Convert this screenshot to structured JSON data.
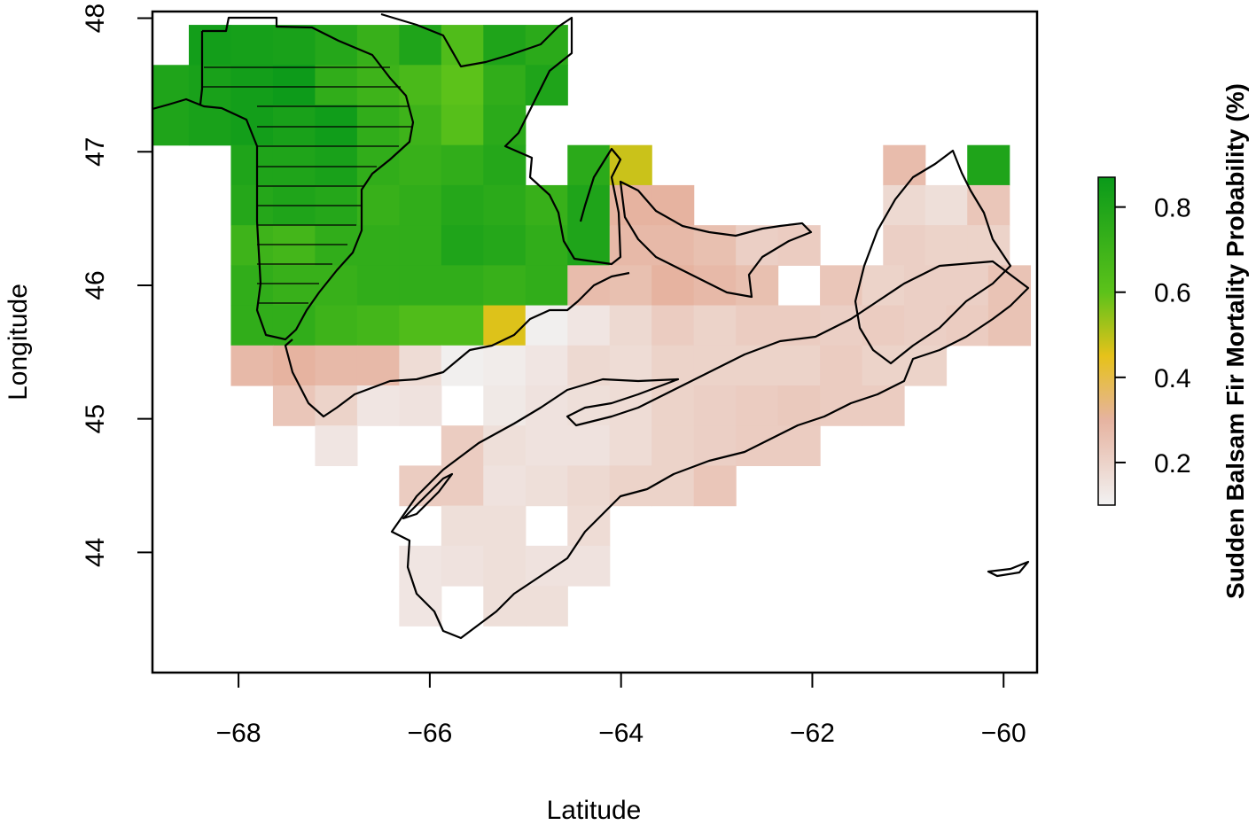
{
  "chart_data": {
    "type": "heatmap",
    "title": "",
    "xlabel": "Latitude",
    "ylabel": "Longitude",
    "xlim": [
      -68.9,
      -59.65
    ],
    "ylim": [
      43.1,
      48.05
    ],
    "x_ticks": [
      -68,
      -66,
      -64,
      -62,
      -60
    ],
    "y_ticks": [
      44,
      45,
      46,
      47,
      48
    ],
    "grid": false,
    "cell_width_deg": 0.44,
    "cell_height_deg": 0.3,
    "legend": {
      "title": "Sudden Balsam Fir Mortality Probability (%)",
      "placement": "right",
      "min": 0.1,
      "max": 0.87,
      "ticks": [
        0.2,
        0.4,
        0.6,
        0.8
      ],
      "colors": [
        "#f2f2f2",
        "#e6b3a0",
        "#e6c21a",
        "#5cc21a",
        "#0a9a1a"
      ],
      "color_stops": [
        0.1,
        0.3,
        0.45,
        0.6,
        0.87
      ]
    },
    "hatched_region": "Maine state area (line-hatched)",
    "cells": [
      {
        "x": -68.3,
        "y": 47.8,
        "v": 0.84
      },
      {
        "x": -67.86,
        "y": 47.8,
        "v": 0.83
      },
      {
        "x": -67.42,
        "y": 47.8,
        "v": 0.82
      },
      {
        "x": -66.98,
        "y": 47.8,
        "v": 0.78
      },
      {
        "x": -66.54,
        "y": 47.8,
        "v": 0.72
      },
      {
        "x": -66.1,
        "y": 47.8,
        "v": 0.8
      },
      {
        "x": -65.66,
        "y": 47.8,
        "v": 0.64
      },
      {
        "x": -65.22,
        "y": 47.8,
        "v": 0.8
      },
      {
        "x": -64.78,
        "y": 47.8,
        "v": 0.76
      },
      {
        "x": -68.74,
        "y": 47.5,
        "v": 0.8
      },
      {
        "x": -68.3,
        "y": 47.5,
        "v": 0.82
      },
      {
        "x": -67.86,
        "y": 47.5,
        "v": 0.84
      },
      {
        "x": -67.42,
        "y": 47.5,
        "v": 0.86
      },
      {
        "x": -66.98,
        "y": 47.5,
        "v": 0.74
      },
      {
        "x": -66.54,
        "y": 47.5,
        "v": 0.7
      },
      {
        "x": -66.1,
        "y": 47.5,
        "v": 0.66
      },
      {
        "x": -65.66,
        "y": 47.5,
        "v": 0.6
      },
      {
        "x": -65.22,
        "y": 47.5,
        "v": 0.74
      },
      {
        "x": -64.78,
        "y": 47.5,
        "v": 0.8
      },
      {
        "x": -68.74,
        "y": 47.2,
        "v": 0.8
      },
      {
        "x": -68.3,
        "y": 47.2,
        "v": 0.82
      },
      {
        "x": -67.86,
        "y": 47.2,
        "v": 0.84
      },
      {
        "x": -67.42,
        "y": 47.2,
        "v": 0.82
      },
      {
        "x": -66.98,
        "y": 47.2,
        "v": 0.85
      },
      {
        "x": -66.54,
        "y": 47.2,
        "v": 0.74
      },
      {
        "x": -66.1,
        "y": 47.2,
        "v": 0.7
      },
      {
        "x": -65.66,
        "y": 47.2,
        "v": 0.62
      },
      {
        "x": -65.22,
        "y": 47.2,
        "v": 0.76
      },
      {
        "x": -64.34,
        "y": 46.9,
        "v": 0.76
      },
      {
        "x": -63.9,
        "y": 46.9,
        "v": 0.48
      },
      {
        "x": -67.86,
        "y": 46.9,
        "v": 0.8
      },
      {
        "x": -67.42,
        "y": 46.9,
        "v": 0.8
      },
      {
        "x": -66.98,
        "y": 46.9,
        "v": 0.82
      },
      {
        "x": -66.54,
        "y": 46.9,
        "v": 0.74
      },
      {
        "x": -66.1,
        "y": 46.9,
        "v": 0.72
      },
      {
        "x": -65.66,
        "y": 46.9,
        "v": 0.74
      },
      {
        "x": -65.22,
        "y": 46.9,
        "v": 0.78
      },
      {
        "x": -61.04,
        "y": 46.9,
        "v": 0.27
      },
      {
        "x": -60.16,
        "y": 46.9,
        "v": 0.8
      },
      {
        "x": -67.86,
        "y": 46.6,
        "v": 0.78
      },
      {
        "x": -67.42,
        "y": 46.6,
        "v": 0.8
      },
      {
        "x": -66.98,
        "y": 46.6,
        "v": 0.78
      },
      {
        "x": -66.54,
        "y": 46.6,
        "v": 0.72
      },
      {
        "x": -66.1,
        "y": 46.6,
        "v": 0.74
      },
      {
        "x": -65.66,
        "y": 46.6,
        "v": 0.78
      },
      {
        "x": -65.22,
        "y": 46.6,
        "v": 0.76
      },
      {
        "x": -64.78,
        "y": 46.6,
        "v": 0.72
      },
      {
        "x": -64.34,
        "y": 46.6,
        "v": 0.8
      },
      {
        "x": -63.9,
        "y": 46.6,
        "v": 0.3
      },
      {
        "x": -63.46,
        "y": 46.6,
        "v": 0.3
      },
      {
        "x": -61.04,
        "y": 46.6,
        "v": 0.18
      },
      {
        "x": -60.6,
        "y": 46.6,
        "v": 0.16
      },
      {
        "x": -60.16,
        "y": 46.6,
        "v": 0.24
      },
      {
        "x": -67.86,
        "y": 46.3,
        "v": 0.7
      },
      {
        "x": -67.42,
        "y": 46.3,
        "v": 0.68
      },
      {
        "x": -66.98,
        "y": 46.3,
        "v": 0.74
      },
      {
        "x": -66.54,
        "y": 46.3,
        "v": 0.74
      },
      {
        "x": -66.1,
        "y": 46.3,
        "v": 0.74
      },
      {
        "x": -65.66,
        "y": 46.3,
        "v": 0.8
      },
      {
        "x": -65.22,
        "y": 46.3,
        "v": 0.78
      },
      {
        "x": -64.78,
        "y": 46.3,
        "v": 0.74
      },
      {
        "x": -64.34,
        "y": 46.3,
        "v": 0.8
      },
      {
        "x": -63.9,
        "y": 46.3,
        "v": 0.28
      },
      {
        "x": -63.46,
        "y": 46.3,
        "v": 0.28
      },
      {
        "x": -63.02,
        "y": 46.3,
        "v": 0.26
      },
      {
        "x": -62.58,
        "y": 46.3,
        "v": 0.21
      },
      {
        "x": -62.14,
        "y": 46.3,
        "v": 0.22
      },
      {
        "x": -61.04,
        "y": 46.3,
        "v": 0.21
      },
      {
        "x": -60.6,
        "y": 46.3,
        "v": 0.2
      },
      {
        "x": -60.16,
        "y": 46.3,
        "v": 0.2
      },
      {
        "x": -67.86,
        "y": 46.0,
        "v": 0.74
      },
      {
        "x": -67.42,
        "y": 46.0,
        "v": 0.72
      },
      {
        "x": -66.98,
        "y": 46.0,
        "v": 0.72
      },
      {
        "x": -66.54,
        "y": 46.0,
        "v": 0.74
      },
      {
        "x": -66.1,
        "y": 46.0,
        "v": 0.74
      },
      {
        "x": -65.66,
        "y": 46.0,
        "v": 0.74
      },
      {
        "x": -65.22,
        "y": 46.0,
        "v": 0.72
      },
      {
        "x": -64.78,
        "y": 46.0,
        "v": 0.74
      },
      {
        "x": -64.34,
        "y": 46.0,
        "v": 0.27
      },
      {
        "x": -63.9,
        "y": 46.0,
        "v": 0.26
      },
      {
        "x": -63.46,
        "y": 46.0,
        "v": 0.3
      },
      {
        "x": -63.02,
        "y": 46.0,
        "v": 0.28
      },
      {
        "x": -62.58,
        "y": 46.0,
        "v": 0.26
      },
      {
        "x": -61.7,
        "y": 46.0,
        "v": 0.24
      },
      {
        "x": -61.26,
        "y": 46.0,
        "v": 0.2
      },
      {
        "x": -60.82,
        "y": 46.0,
        "v": 0.21
      },
      {
        "x": -60.38,
        "y": 46.0,
        "v": 0.21
      },
      {
        "x": -59.94,
        "y": 46.0,
        "v": 0.25
      },
      {
        "x": -67.86,
        "y": 45.7,
        "v": 0.74
      },
      {
        "x": -67.42,
        "y": 45.7,
        "v": 0.74
      },
      {
        "x": -66.98,
        "y": 45.7,
        "v": 0.7
      },
      {
        "x": -66.54,
        "y": 45.7,
        "v": 0.68
      },
      {
        "x": -66.1,
        "y": 45.7,
        "v": 0.64
      },
      {
        "x": -65.66,
        "y": 45.7,
        "v": 0.64
      },
      {
        "x": -65.22,
        "y": 45.7,
        "v": 0.46
      },
      {
        "x": -64.78,
        "y": 45.7,
        "v": 0.11
      },
      {
        "x": -64.34,
        "y": 45.7,
        "v": 0.14
      },
      {
        "x": -63.9,
        "y": 45.7,
        "v": 0.18
      },
      {
        "x": -63.46,
        "y": 45.7,
        "v": 0.22
      },
      {
        "x": -63.02,
        "y": 45.7,
        "v": 0.2
      },
      {
        "x": -62.58,
        "y": 45.7,
        "v": 0.22
      },
      {
        "x": -62.14,
        "y": 45.7,
        "v": 0.22
      },
      {
        "x": -61.7,
        "y": 45.7,
        "v": 0.21
      },
      {
        "x": -61.26,
        "y": 45.7,
        "v": 0.22
      },
      {
        "x": -60.82,
        "y": 45.7,
        "v": 0.21
      },
      {
        "x": -60.38,
        "y": 45.7,
        "v": 0.22
      },
      {
        "x": -59.94,
        "y": 45.7,
        "v": 0.25
      },
      {
        "x": -67.86,
        "y": 45.4,
        "v": 0.28
      },
      {
        "x": -67.42,
        "y": 45.4,
        "v": 0.3
      },
      {
        "x": -66.98,
        "y": 45.4,
        "v": 0.28
      },
      {
        "x": -66.54,
        "y": 45.4,
        "v": 0.28
      },
      {
        "x": -66.1,
        "y": 45.4,
        "v": 0.17
      },
      {
        "x": -65.66,
        "y": 45.4,
        "v": 0.11
      },
      {
        "x": -65.22,
        "y": 45.4,
        "v": 0.12
      },
      {
        "x": -64.78,
        "y": 45.4,
        "v": 0.14
      },
      {
        "x": -64.34,
        "y": 45.4,
        "v": 0.18
      },
      {
        "x": -63.9,
        "y": 45.4,
        "v": 0.17
      },
      {
        "x": -63.46,
        "y": 45.4,
        "v": 0.2
      },
      {
        "x": -63.02,
        "y": 45.4,
        "v": 0.2
      },
      {
        "x": -62.58,
        "y": 45.4,
        "v": 0.2
      },
      {
        "x": -62.14,
        "y": 45.4,
        "v": 0.2
      },
      {
        "x": -61.7,
        "y": 45.4,
        "v": 0.22
      },
      {
        "x": -61.26,
        "y": 45.4,
        "v": 0.2
      },
      {
        "x": -60.82,
        "y": 45.4,
        "v": 0.2
      },
      {
        "x": -67.42,
        "y": 45.1,
        "v": 0.24
      },
      {
        "x": -66.98,
        "y": 45.1,
        "v": 0.2
      },
      {
        "x": -66.54,
        "y": 45.1,
        "v": 0.14
      },
      {
        "x": -66.1,
        "y": 45.1,
        "v": 0.15
      },
      {
        "x": -65.22,
        "y": 45.1,
        "v": 0.13
      },
      {
        "x": -64.78,
        "y": 45.1,
        "v": 0.15
      },
      {
        "x": -64.34,
        "y": 45.1,
        "v": 0.16
      },
      {
        "x": -63.9,
        "y": 45.1,
        "v": 0.17
      },
      {
        "x": -63.46,
        "y": 45.1,
        "v": 0.2
      },
      {
        "x": -63.02,
        "y": 45.1,
        "v": 0.21
      },
      {
        "x": -62.58,
        "y": 45.1,
        "v": 0.22
      },
      {
        "x": -62.14,
        "y": 45.1,
        "v": 0.23
      },
      {
        "x": -61.7,
        "y": 45.1,
        "v": 0.22
      },
      {
        "x": -61.26,
        "y": 45.1,
        "v": 0.22
      },
      {
        "x": -66.98,
        "y": 44.8,
        "v": 0.14
      },
      {
        "x": -65.66,
        "y": 44.8,
        "v": 0.22
      },
      {
        "x": -65.22,
        "y": 44.8,
        "v": 0.16
      },
      {
        "x": -64.78,
        "y": 44.8,
        "v": 0.15
      },
      {
        "x": -64.34,
        "y": 44.8,
        "v": 0.15
      },
      {
        "x": -63.9,
        "y": 44.8,
        "v": 0.17
      },
      {
        "x": -63.46,
        "y": 44.8,
        "v": 0.2
      },
      {
        "x": -63.02,
        "y": 44.8,
        "v": 0.21
      },
      {
        "x": -62.58,
        "y": 44.8,
        "v": 0.22
      },
      {
        "x": -62.14,
        "y": 44.8,
        "v": 0.22
      },
      {
        "x": -66.1,
        "y": 44.5,
        "v": 0.22
      },
      {
        "x": -65.66,
        "y": 44.5,
        "v": 0.22
      },
      {
        "x": -65.22,
        "y": 44.5,
        "v": 0.15
      },
      {
        "x": -64.78,
        "y": 44.5,
        "v": 0.16
      },
      {
        "x": -64.34,
        "y": 44.5,
        "v": 0.18
      },
      {
        "x": -63.9,
        "y": 44.5,
        "v": 0.2
      },
      {
        "x": -63.46,
        "y": 44.5,
        "v": 0.2
      },
      {
        "x": -63.02,
        "y": 44.5,
        "v": 0.24
      },
      {
        "x": -65.66,
        "y": 44.2,
        "v": 0.16
      },
      {
        "x": -65.22,
        "y": 44.2,
        "v": 0.16
      },
      {
        "x": -64.34,
        "y": 44.2,
        "v": 0.17
      },
      {
        "x": -66.1,
        "y": 43.9,
        "v": 0.14
      },
      {
        "x": -65.66,
        "y": 43.9,
        "v": 0.15
      },
      {
        "x": -65.22,
        "y": 43.9,
        "v": 0.16
      },
      {
        "x": -64.78,
        "y": 43.9,
        "v": 0.15
      },
      {
        "x": -64.34,
        "y": 43.9,
        "v": 0.15
      },
      {
        "x": -66.1,
        "y": 43.6,
        "v": 0.14
      },
      {
        "x": -65.22,
        "y": 43.6,
        "v": 0.16
      },
      {
        "x": -64.78,
        "y": 43.6,
        "v": 0.16
      }
    ]
  }
}
